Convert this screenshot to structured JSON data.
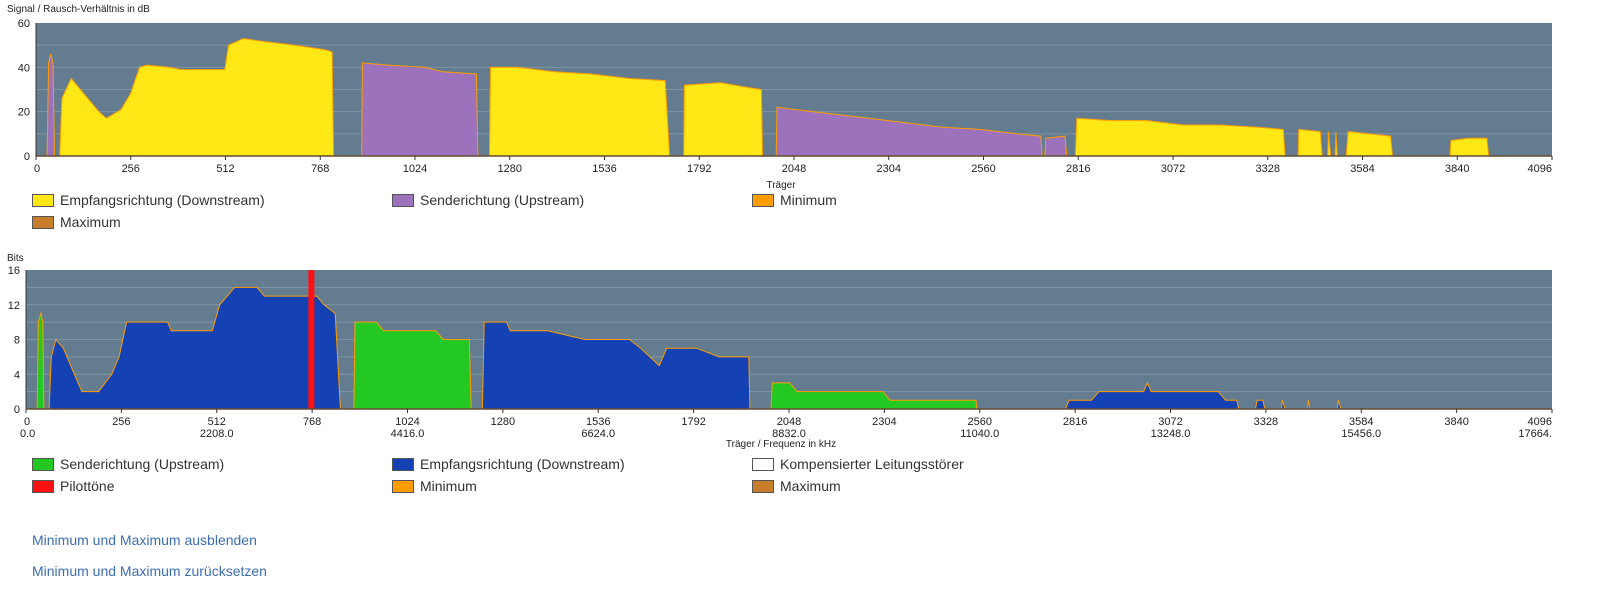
{
  "colors": {
    "plot_bg": "#637c8f",
    "grid": "#7f95a6",
    "yellow": "#ffe816",
    "purple": "#9c72bd",
    "minimum": "#ff9d00",
    "maximum": "#c77d2c",
    "green": "#23c823",
    "blue": "#1441b4",
    "pilot": "#ff1111",
    "compensated": "#ffffff",
    "link": "#3c6eb4"
  },
  "snr_chart": {
    "ylabel": "Signal / Rausch-Verhältnis in dB",
    "xlabel": "Träger",
    "legend": [
      {
        "label": "Empfangsrichtung (Downstream)",
        "color": "#ffe816"
      },
      {
        "label": "Senderichtung (Upstream)",
        "color": "#9c72bd"
      },
      {
        "label": "Minimum",
        "color": "#ff9d00"
      },
      {
        "label": "Maximum",
        "color": "#c77d2c"
      }
    ]
  },
  "bits_chart": {
    "ylabel": "Bits",
    "xlabel": "Träger / Frequenz in kHz",
    "legend": [
      {
        "label": "Senderichtung (Upstream)",
        "color": "#23c823"
      },
      {
        "label": "Empfangsrichtung (Downstream)",
        "color": "#1441b4"
      },
      {
        "label": "Kompensierter Leitungsstörer",
        "color": "#ffffff"
      },
      {
        "label": "Pilottöne",
        "color": "#ff1111"
      },
      {
        "label": "Minimum",
        "color": "#ff9d00"
      },
      {
        "label": "Maximum",
        "color": "#c77d2c"
      }
    ]
  },
  "links": {
    "hide_minmax": "Minimum und Maximum ausblenden",
    "reset_minmax": "Minimum und Maximum zurücksetzen"
  },
  "chart_data": [
    {
      "type": "area",
      "title": "",
      "ylabel": "Signal / Rausch-Verhältnis in dB",
      "xlabel": "Träger",
      "xlim": [
        0,
        4096
      ],
      "ylim": [
        0,
        60
      ],
      "xticks": [
        0,
        256,
        512,
        768,
        1024,
        1280,
        1536,
        1792,
        2048,
        2304,
        2560,
        2816,
        3072,
        3328,
        3584,
        3840,
        4096
      ],
      "yticks": [
        0,
        20,
        40,
        60
      ],
      "series": [
        {
          "name": "Empfangsrichtung (Downstream)",
          "color": "#ffe816",
          "segments": [
            [
              [
                64,
                0
              ],
              [
                70,
                26
              ],
              [
                95,
                35
              ],
              [
                130,
                28
              ],
              [
                170,
                20
              ],
              [
                190,
                17
              ],
              [
                230,
                21
              ],
              [
                255,
                28
              ],
              [
                280,
                40
              ],
              [
                300,
                41
              ],
              [
                360,
                40
              ],
              [
                390,
                39
              ],
              [
                510,
                39
              ],
              [
                520,
                50
              ],
              [
                560,
                53
              ],
              [
                600,
                52
              ],
              [
                700,
                50
              ],
              [
                780,
                48
              ],
              [
                800,
                47
              ],
              [
                804,
                0
              ]
            ],
            [
              [
                1225,
                0
              ],
              [
                1228,
                40
              ],
              [
                1300,
                40
              ],
              [
                1400,
                38
              ],
              [
                1500,
                37
              ],
              [
                1600,
                35
              ],
              [
                1700,
                34
              ],
              [
                1712,
                0
              ]
            ],
            [
              [
                1750,
                0
              ],
              [
                1752,
                32
              ],
              [
                1850,
                33
              ],
              [
                1920,
                31
              ],
              [
                1960,
                30
              ],
              [
                1963,
                0
              ]
            ],
            [
              [
                2808,
                0
              ],
              [
                2812,
                17
              ],
              [
                2900,
                16
              ],
              [
                3000,
                16
              ],
              [
                3100,
                14
              ],
              [
                3200,
                14
              ],
              [
                3300,
                13
              ],
              [
                3370,
                12
              ],
              [
                3375,
                0
              ]
            ],
            [
              [
                3410,
                0
              ],
              [
                3412,
                12
              ],
              [
                3470,
                11
              ],
              [
                3475,
                0
              ]
            ],
            [
              [
                3490,
                0
              ],
              [
                3492,
                11
              ],
              [
                3498,
                0
              ]
            ],
            [
              [
                3510,
                0
              ],
              [
                3512,
                11
              ],
              [
                3516,
                0
              ]
            ],
            [
              [
                3540,
                0
              ],
              [
                3545,
                11
              ],
              [
                3600,
                10
              ],
              [
                3660,
                9
              ],
              [
                3665,
                0
              ]
            ],
            [
              [
                3820,
                0
              ],
              [
                3823,
                7
              ],
              [
                3870,
                8
              ],
              [
                3920,
                8
              ],
              [
                3925,
                0
              ]
            ]
          ]
        },
        {
          "name": "Senderichtung (Upstream)",
          "color": "#9c72bd",
          "segments": [
            [
              [
                30,
                0
              ],
              [
                34,
                42
              ],
              [
                40,
                46
              ],
              [
                46,
                42
              ],
              [
                50,
                0
              ]
            ],
            [
              [
                880,
                0
              ],
              [
                882,
                42
              ],
              [
                950,
                41
              ],
              [
                1050,
                40
              ],
              [
                1100,
                38
              ],
              [
                1190,
                37
              ],
              [
                1194,
                0
              ]
            ],
            [
              [
                2000,
                0
              ],
              [
                2002,
                22
              ],
              [
                2050,
                21
              ],
              [
                2150,
                19
              ],
              [
                2250,
                17
              ],
              [
                2350,
                15
              ],
              [
                2450,
                13
              ],
              [
                2550,
                12
              ],
              [
                2650,
                10
              ],
              [
                2715,
                9
              ],
              [
                2718,
                0
              ]
            ],
            [
              [
                2726,
                0
              ],
              [
                2728,
                8
              ],
              [
                2780,
                9
              ],
              [
                2785,
                0
              ]
            ]
          ]
        }
      ]
    },
    {
      "type": "area",
      "title": "",
      "ylabel": "Bits",
      "xlabel": "Träger / Frequenz in kHz",
      "xlim": [
        0,
        4096
      ],
      "ylim": [
        0,
        16
      ],
      "xticks": [
        0,
        256,
        512,
        768,
        1024,
        1280,
        1536,
        1792,
        2048,
        2304,
        2560,
        2816,
        3072,
        3328,
        3584,
        3840,
        4096
      ],
      "xticks_khz": [
        "0.0",
        "2208.0",
        "4416.0",
        "6624.0",
        "8832.0",
        "11040.0",
        "13248.0",
        "15456.0",
        "17664."
      ],
      "yticks": [
        0,
        4,
        8,
        12,
        16
      ],
      "series": [
        {
          "name": "Senderichtung (Upstream)",
          "color": "#23c823",
          "segments": [
            [
              [
                30,
                0
              ],
              [
                33,
                10
              ],
              [
                40,
                11
              ],
              [
                45,
                10
              ],
              [
                48,
                0
              ]
            ],
            [
              [
                880,
                0
              ],
              [
                883,
                10
              ],
              [
                940,
                10
              ],
              [
                960,
                9
              ],
              [
                1100,
                9
              ],
              [
                1120,
                8
              ],
              [
                1190,
                8
              ],
              [
                1195,
                0
              ]
            ],
            [
              [
                2000,
                0
              ],
              [
                2003,
                3
              ],
              [
                2050,
                3
              ],
              [
                2070,
                2
              ],
              [
                2300,
                2
              ],
              [
                2320,
                1
              ],
              [
                2550,
                1
              ],
              [
                2552,
                0
              ]
            ]
          ]
        },
        {
          "name": "Empfangsrichtung (Downstream)",
          "color": "#1441b4",
          "segments": [
            [
              [
                62,
                0
              ],
              [
                68,
                6
              ],
              [
                80,
                8
              ],
              [
                100,
                7
              ],
              [
                130,
                4
              ],
              [
                150,
                2
              ],
              [
                195,
                2
              ],
              [
                230,
                4
              ],
              [
                250,
                6
              ],
              [
                270,
                10
              ],
              [
                380,
                10
              ],
              [
                390,
                9
              ],
              [
                500,
                9
              ],
              [
                520,
                12
              ],
              [
                560,
                14
              ],
              [
                620,
                14
              ],
              [
                640,
                13
              ],
              [
                780,
                13
              ],
              [
                800,
                12
              ],
              [
                830,
                11
              ],
              [
                844,
                0
              ]
            ],
            [
              [
                1225,
                0
              ],
              [
                1230,
                10
              ],
              [
                1290,
                10
              ],
              [
                1300,
                9
              ],
              [
                1400,
                9
              ],
              [
                1500,
                8
              ],
              [
                1620,
                8
              ],
              [
                1650,
                7
              ],
              [
                1700,
                5
              ],
              [
                1720,
                7
              ],
              [
                1800,
                7
              ],
              [
                1860,
                6
              ],
              [
                1940,
                6
              ],
              [
                1943,
                0
              ]
            ],
            [
              [
                2790,
                0
              ],
              [
                2800,
                1
              ],
              [
                2860,
                1
              ],
              [
                2880,
                2
              ],
              [
                3000,
                2
              ],
              [
                3010,
                3
              ],
              [
                3020,
                2
              ],
              [
                3200,
                2
              ],
              [
                3220,
                1
              ],
              [
                3250,
                1
              ],
              [
                3255,
                0
              ]
            ],
            [
              [
                3300,
                0
              ],
              [
                3305,
                1
              ],
              [
                3320,
                1
              ],
              [
                3325,
                0
              ]
            ],
            [
              [
                3370,
                0
              ],
              [
                3372,
                1
              ],
              [
                3380,
                0
              ]
            ],
            [
              [
                3440,
                0
              ],
              [
                3442,
                1
              ],
              [
                3446,
                0
              ]
            ],
            [
              [
                3520,
                0
              ],
              [
                3522,
                1
              ],
              [
                3530,
                0
              ]
            ]
          ]
        },
        {
          "name": "Pilottöne",
          "color": "#ff1111",
          "bars": [
            766
          ]
        }
      ]
    }
  ]
}
